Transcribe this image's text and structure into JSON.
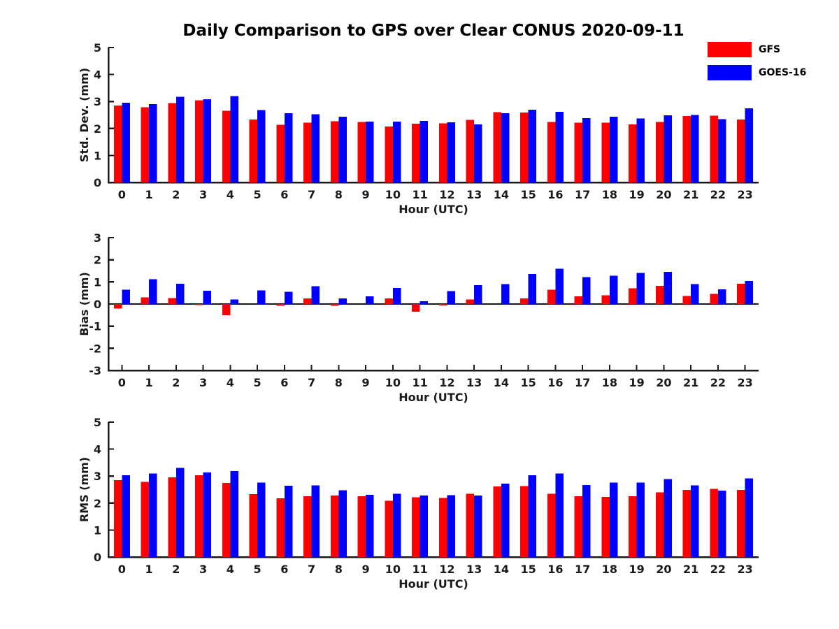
{
  "title": "Daily Comparison to GPS over Clear CONUS 2020-09-11",
  "legend": {
    "position": "top-right",
    "items": [
      {
        "label": "GFS",
        "color": "#ff0000"
      },
      {
        "label": "GOES-16",
        "color": "#0000ff"
      }
    ]
  },
  "axis_color": "#1a1a1a",
  "chart_data": [
    {
      "type": "bar",
      "panel": "stddev",
      "ylabel": "Std. Dev. (mm)",
      "xlabel": "Hour (UTC)",
      "ylim": [
        0,
        5
      ],
      "yticks": [
        0,
        1,
        2,
        3,
        4,
        5
      ],
      "grid": false,
      "categories": [
        "0",
        "1",
        "2",
        "3",
        "4",
        "5",
        "6",
        "7",
        "8",
        "9",
        "10",
        "11",
        "12",
        "13",
        "14",
        "15",
        "16",
        "17",
        "18",
        "19",
        "20",
        "21",
        "22",
        "23"
      ],
      "series": [
        {
          "name": "GFS",
          "color": "#ff0000",
          "values": [
            2.85,
            2.78,
            2.94,
            3.05,
            2.66,
            2.33,
            2.14,
            2.22,
            2.27,
            2.24,
            2.07,
            2.17,
            2.19,
            2.32,
            2.6,
            2.59,
            2.24,
            2.21,
            2.22,
            2.15,
            2.24,
            2.46,
            2.48,
            2.33
          ]
        },
        {
          "name": "GOES-16",
          "color": "#0000ff",
          "values": [
            2.95,
            2.9,
            3.18,
            3.08,
            3.2,
            2.68,
            2.56,
            2.53,
            2.43,
            2.25,
            2.25,
            2.28,
            2.23,
            2.15,
            2.57,
            2.7,
            2.62,
            2.38,
            2.43,
            2.37,
            2.49,
            2.5,
            2.35,
            2.74
          ]
        }
      ]
    },
    {
      "type": "bar",
      "panel": "bias",
      "ylabel": "Bias (mm)",
      "xlabel": "Hour (UTC)",
      "ylim": [
        -3,
        3
      ],
      "yticks": [
        -3,
        -2,
        -1,
        0,
        1,
        2,
        3
      ],
      "grid": false,
      "zero_line": true,
      "categories": [
        "0",
        "1",
        "2",
        "3",
        "4",
        "5",
        "6",
        "7",
        "8",
        "9",
        "10",
        "11",
        "12",
        "13",
        "14",
        "15",
        "16",
        "17",
        "18",
        "19",
        "20",
        "21",
        "22",
        "23"
      ],
      "series": [
        {
          "name": "GFS",
          "color": "#ff0000",
          "values": [
            -0.2,
            0.3,
            0.27,
            -0.04,
            -0.5,
            0.0,
            -0.08,
            0.25,
            -0.08,
            0.0,
            0.25,
            -0.35,
            -0.06,
            0.2,
            0.0,
            0.25,
            0.65,
            0.34,
            0.4,
            0.71,
            0.82,
            0.37,
            0.46,
            0.92
          ]
        },
        {
          "name": "GOES-16",
          "color": "#0000ff",
          "values": [
            0.65,
            1.12,
            0.92,
            0.6,
            0.2,
            0.62,
            0.56,
            0.8,
            0.26,
            0.34,
            0.72,
            0.12,
            0.58,
            0.85,
            0.9,
            1.36,
            1.6,
            1.22,
            1.28,
            1.41,
            1.45,
            0.9,
            0.67,
            1.04
          ]
        }
      ]
    },
    {
      "type": "bar",
      "panel": "rms",
      "ylabel": "RMS (mm)",
      "xlabel": "Hour (UTC)",
      "ylim": [
        0,
        5
      ],
      "yticks": [
        0,
        1,
        2,
        3,
        4,
        5
      ],
      "grid": false,
      "categories": [
        "0",
        "1",
        "2",
        "3",
        "4",
        "5",
        "6",
        "7",
        "8",
        "9",
        "10",
        "11",
        "12",
        "13",
        "14",
        "15",
        "16",
        "17",
        "18",
        "19",
        "20",
        "21",
        "22",
        "23"
      ],
      "series": [
        {
          "name": "GFS",
          "color": "#ff0000",
          "values": [
            2.85,
            2.79,
            2.95,
            3.03,
            2.74,
            2.33,
            2.17,
            2.25,
            2.28,
            2.25,
            2.08,
            2.22,
            2.19,
            2.34,
            2.62,
            2.63,
            2.35,
            2.26,
            2.23,
            2.26,
            2.4,
            2.49,
            2.52,
            2.49
          ]
        },
        {
          "name": "GOES-16",
          "color": "#0000ff",
          "values": [
            3.03,
            3.1,
            3.3,
            3.13,
            3.19,
            2.76,
            2.64,
            2.66,
            2.48,
            2.3,
            2.35,
            2.28,
            2.29,
            2.28,
            2.72,
            3.03,
            3.09,
            2.67,
            2.76,
            2.76,
            2.89,
            2.65,
            2.46,
            2.92
          ]
        }
      ]
    }
  ]
}
